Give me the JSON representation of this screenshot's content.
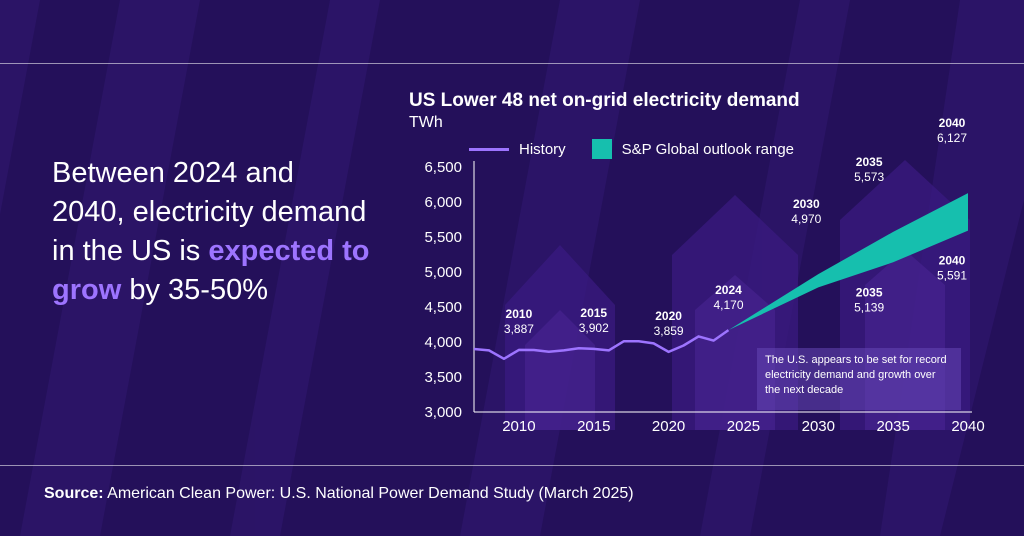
{
  "headline": {
    "part1": "Between 2024 and 2040, electricity demand in the US is ",
    "highlight": "expected to grow",
    "part2": " by 35-50%"
  },
  "source": {
    "label": "Source:",
    "text": " American Clean Power: U.S. National Power Demand Study (March 2025)"
  },
  "colors": {
    "background": "#24105a",
    "history_line": "#9d74ff",
    "outlook_range": "#16bfae",
    "highlight_text": "#9d74ff"
  },
  "chart_data": {
    "type": "line",
    "title": "US Lower 48 net on-grid electricity demand",
    "unit": "TWh",
    "ylim": [
      3000,
      6500
    ],
    "yticks": [
      3000,
      3500,
      4000,
      4500,
      5000,
      5500,
      6000,
      6500
    ],
    "xlim": [
      2007,
      2040
    ],
    "xticks": [
      2010,
      2015,
      2020,
      2025,
      2030,
      2035,
      2040
    ],
    "legend": {
      "history": "History",
      "range": "S&P Global outlook range"
    },
    "history": {
      "name": "History",
      "x": [
        2007,
        2008,
        2009,
        2010,
        2011,
        2012,
        2013,
        2014,
        2015,
        2016,
        2017,
        2018,
        2019,
        2020,
        2021,
        2022,
        2023,
        2024
      ],
      "y": [
        3900,
        3880,
        3760,
        3887,
        3885,
        3860,
        3880,
        3910,
        3902,
        3880,
        4010,
        4010,
        3980,
        3859,
        3950,
        4080,
        4020,
        4170
      ]
    },
    "outlook_range": {
      "name": "S&P Global outlook range",
      "x": [
        2024,
        2030,
        2035,
        2040
      ],
      "upper": [
        4170,
        4970,
        5573,
        6127
      ],
      "lower": [
        4170,
        4780,
        5139,
        5591
      ]
    },
    "annotations": [
      {
        "year": "2010",
        "value": "3,887",
        "x": 2010,
        "y": 3887
      },
      {
        "year": "2015",
        "value": "3,902",
        "x": 2015,
        "y": 3902
      },
      {
        "year": "2020",
        "value": "3,859",
        "x": 2020,
        "y": 3859
      },
      {
        "year": "2024",
        "value": "4,170",
        "x": 2024,
        "y": 4170
      },
      {
        "year": "2030",
        "value": "4,970",
        "x": 2030,
        "y": 4970
      },
      {
        "year": "2035",
        "value": "5,573",
        "x": 2035,
        "y": 5573
      },
      {
        "year": "2040",
        "value": "6,127",
        "x": 2040,
        "y": 6127
      },
      {
        "year": "2035",
        "value": "5,139",
        "x": 2035,
        "y": 5139
      },
      {
        "year": "2040",
        "value": "5,591",
        "x": 2040,
        "y": 5591
      }
    ],
    "note": "The U.S. appears to be set for record electricity demand and growth over the next decade"
  }
}
